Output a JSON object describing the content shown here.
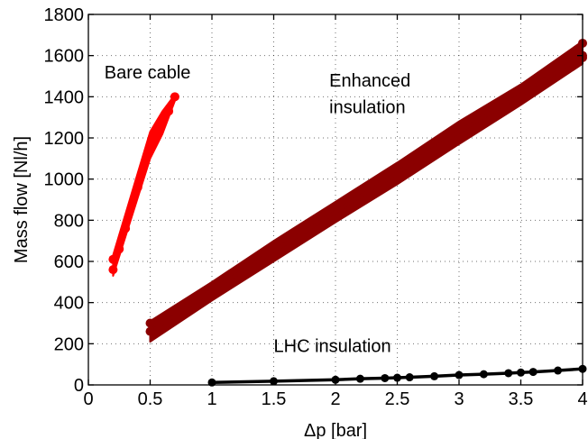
{
  "chart_data": {
    "type": "scatter",
    "title": "",
    "xlabel": "Δp [bar]",
    "ylabel": "Mass flow [Nl/h]",
    "xlim": [
      0,
      4
    ],
    "ylim": [
      0,
      1800
    ],
    "xticks": [
      0,
      0.5,
      1,
      1.5,
      2,
      2.5,
      3,
      3.5,
      4
    ],
    "xtick_labels": [
      "0",
      "0.5",
      "1",
      "1.5",
      "2",
      "2.5",
      "3",
      "3.5",
      "4"
    ],
    "yticks": [
      0,
      200,
      400,
      600,
      800,
      1000,
      1200,
      1400,
      1600,
      1800
    ],
    "ytick_labels": [
      "0",
      "200",
      "400",
      "600",
      "800",
      "1000",
      "1200",
      "1400",
      "1600",
      "1800"
    ],
    "grid": true,
    "series": [
      {
        "name": "Bare cable",
        "color": "#ff0000",
        "style": "band",
        "x": [
          0.2,
          0.3,
          0.4,
          0.5,
          0.6,
          0.7
        ],
        "y": [
          560,
          760,
          960,
          1150,
          1280,
          1400
        ],
        "y_low": [
          530,
          720,
          910,
          1100,
          1220,
          1380
        ],
        "y_high": [
          630,
          830,
          1030,
          1230,
          1330,
          1410
        ],
        "marker_x": [
          0.2,
          0.2,
          0.25,
          0.3,
          0.4,
          0.5,
          0.55,
          0.6,
          0.65,
          0.7
        ],
        "marker_y": [
          560,
          610,
          660,
          760,
          960,
          1150,
          1220,
          1280,
          1330,
          1400
        ]
      },
      {
        "name": "Enhanced insulation",
        "color": "#8b0000",
        "style": "band",
        "x": [
          0.5,
          1.0,
          1.5,
          2.0,
          2.5,
          3.0,
          3.5,
          4.0
        ],
        "y": [
          255,
          460,
          650,
          840,
          1030,
          1230,
          1410,
          1600
        ],
        "y_low": [
          210,
          410,
          600,
          790,
          975,
          1170,
          1360,
          1560
        ],
        "y_high": [
          310,
          500,
          700,
          890,
          1080,
          1280,
          1460,
          1670
        ],
        "marker_x": [
          0.5,
          0.5,
          4.0,
          4.0,
          4.0
        ],
        "marker_y": [
          260,
          300,
          1600,
          1660,
          1590
        ]
      },
      {
        "name": "LHC insulation",
        "color": "#000000",
        "style": "line-markers",
        "x": [
          1.0,
          1.5,
          2.0,
          2.2,
          2.4,
          2.5,
          2.6,
          2.8,
          3.0,
          3.2,
          3.4,
          3.5,
          3.6,
          3.8,
          4.0
        ],
        "y": [
          12,
          18,
          25,
          30,
          33,
          35,
          37,
          42,
          48,
          52,
          57,
          60,
          63,
          70,
          78
        ]
      }
    ],
    "annotations": [
      {
        "text": "Bare cable",
        "x": 0.13,
        "y": 1490
      },
      {
        "text": "Enhanced",
        "x": 1.95,
        "y": 1450
      },
      {
        "text": "insulation",
        "x": 1.95,
        "y": 1320
      },
      {
        "text": "LHC insulation",
        "x": 1.5,
        "y": 160
      }
    ]
  }
}
